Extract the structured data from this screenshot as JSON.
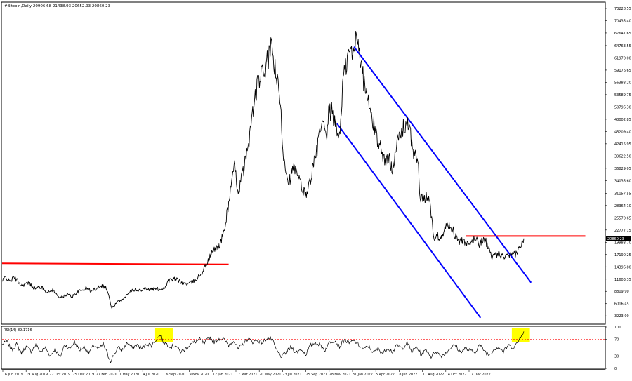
{
  "header": {
    "title_line": "#Bitcoin,Daily  20906.68 21438.93 20652.93 20860.23",
    "rsi_label": "RSI(14) 89.1716"
  },
  "colors": {
    "background": "#ffffff",
    "price": "#000000",
    "channel": "#0000ff",
    "resistance": "#ff0000",
    "rsi_level": "#ff0000",
    "rsi_highlight": "#ffff00",
    "current_price_tag": "#000000"
  },
  "chart_data": [
    {
      "type": "line",
      "title": "#Bitcoin,Daily",
      "xlabel": "",
      "ylabel": "",
      "ylim": [
        1500,
        74500
      ],
      "y_ticks": [
        73228.55,
        70435.4,
        67641.65,
        64763.55,
        61970.0,
        59176.65,
        56383.2,
        53589.75,
        50796.3,
        48002.85,
        45209.4,
        42415.95,
        39622.5,
        36829.05,
        34035.6,
        31157.55,
        28364.1,
        25570.65,
        22777.15,
        19983.7,
        17190.25,
        14396.8,
        11603.35,
        8809.9,
        6016.45,
        3223.0
      ],
      "x_ticks": [
        "16 Jun 2019",
        "19 Aug 2019",
        "22 Oct 2019",
        "25 Dec 2019",
        "27 Feb 2020",
        "1 May 2020",
        "4 Jul 2020",
        "6 Sep 2020",
        "9 Nov 2020",
        "12 Jan 2021",
        "17 Mar 2021",
        "20 May 2021",
        "23 Jul 2021",
        "25 Sep 2021",
        "28 Nov 2021",
        "31 Jan 2022",
        "5 Apr 2022",
        "8 Jun 2022",
        "11 Aug 2022",
        "14 Oct 2022",
        "17 Dec 2022"
      ],
      "last_price": "20860.23",
      "series": [
        {
          "values": [
            [
              0,
              11000
            ],
            [
              3,
              12200
            ],
            [
              6,
              11000
            ],
            [
              10,
              12000
            ],
            [
              16,
              10200
            ],
            [
              22,
              10700
            ],
            [
              27,
              9500
            ],
            [
              32,
              9800
            ],
            [
              38,
              8600
            ],
            [
              42,
              9200
            ],
            [
              46,
              7800
            ],
            [
              50,
              7400
            ],
            [
              54,
              8200
            ],
            [
              58,
              7600
            ],
            [
              62,
              8600
            ],
            [
              66,
              9000
            ],
            [
              70,
              9600
            ],
            [
              74,
              8800
            ],
            [
              78,
              9500
            ],
            [
              82,
              10200
            ],
            [
              86,
              9700
            ],
            [
              88,
              8400
            ],
            [
              90,
              6000
            ],
            [
              91,
              4900
            ],
            [
              93,
              5600
            ],
            [
              97,
              6700
            ],
            [
              101,
              7000
            ],
            [
              105,
              8700
            ],
            [
              109,
              9300
            ],
            [
              113,
              8900
            ],
            [
              118,
              9600
            ],
            [
              122,
              9200
            ],
            [
              127,
              9400
            ],
            [
              131,
              9300
            ],
            [
              135,
              9700
            ],
            [
              138,
              11200
            ],
            [
              142,
              11600
            ],
            [
              146,
              11400
            ],
            [
              150,
              10700
            ],
            [
              154,
              10500
            ],
            [
              158,
              10900
            ],
            [
              162,
              11800
            ],
            [
              166,
              13200
            ],
            [
              170,
              15200
            ],
            [
              174,
              17500
            ],
            [
              178,
              18800
            ],
            [
              181,
              19500
            ],
            [
              185,
              23500
            ],
            [
              188,
              29000
            ],
            [
              190,
              33000
            ],
            [
              193,
              37000
            ],
            [
              196,
              31500
            ],
            [
              200,
              36000
            ],
            [
              203,
              40000
            ],
            [
              207,
              47500
            ],
            [
              210,
              53000
            ],
            [
              213,
              57000
            ],
            [
              216,
              58000
            ],
            [
              219,
              60000
            ],
            [
              222,
              63000
            ],
            [
              224,
              64500
            ],
            [
              226,
              60000
            ],
            [
              228,
              57000
            ],
            [
              231,
              51000
            ],
            [
              233,
              41000
            ],
            [
              236,
              36000
            ],
            [
              238,
              34000
            ],
            [
              242,
              37000
            ],
            [
              245,
              35000
            ],
            [
              248,
              33000
            ],
            [
              251,
              31000
            ],
            [
              254,
              32000
            ],
            [
              257,
              36000
            ],
            [
              260,
              39000
            ],
            [
              263,
              44000
            ],
            [
              266,
              47000
            ],
            [
              269,
              43000
            ],
            [
              271,
              49000
            ],
            [
              274,
              50000
            ],
            [
              277,
              46000
            ],
            [
              280,
              44000
            ],
            [
              283,
              57000
            ],
            [
              286,
              61000
            ],
            [
              289,
              64000
            ],
            [
              291,
              62000
            ],
            [
              294,
              67500
            ],
            [
              296,
              66000
            ],
            [
              298,
              60000
            ],
            [
              300,
              57000
            ],
            [
              303,
              53000
            ],
            [
              306,
              49000
            ],
            [
              309,
              46000
            ],
            [
              312,
              43000
            ],
            [
              315,
              41000
            ],
            [
              318,
              38000
            ],
            [
              321,
              39000
            ],
            [
              324,
              37000
            ],
            [
              327,
              42000
            ],
            [
              330,
              44000
            ],
            [
              333,
              46000
            ],
            [
              336,
              47500
            ],
            [
              339,
              44000
            ],
            [
              342,
              40000
            ],
            [
              345,
              38500
            ],
            [
              347,
              30000
            ],
            [
              350,
              29500
            ],
            [
              353,
              30500
            ],
            [
              355,
              29000
            ],
            [
              357,
              24000
            ],
            [
              359,
              20500
            ],
            [
              361,
              21500
            ],
            [
              364,
              21000
            ],
            [
              367,
              23000
            ],
            [
              370,
              24000
            ],
            [
              373,
              23500
            ],
            [
              376,
              21500
            ],
            [
              379,
              20000
            ],
            [
              382,
              20500
            ],
            [
              385,
              19300
            ],
            [
              388,
              19500
            ],
            [
              390,
              20000
            ],
            [
              392,
              21000
            ],
            [
              394,
              20500
            ],
            [
              396,
              19700
            ],
            [
              398,
              20200
            ],
            [
              400,
              21000
            ],
            [
              403,
              19200
            ],
            [
              406,
              16700
            ],
            [
              409,
              16900
            ],
            [
              412,
              17200
            ],
            [
              415,
              16900
            ],
            [
              418,
              16600
            ],
            [
              421,
              17000
            ],
            [
              423,
              16900
            ],
            [
              426,
              17300
            ],
            [
              429,
              18500
            ],
            [
              432,
              20000
            ],
            [
              433,
              20860
            ]
          ]
        }
      ],
      "overlays": {
        "resistance_left": {
          "from_x": 0,
          "to_x": 188,
          "y_start": 15200,
          "y_end": 14950
        },
        "resistance_right": {
          "from_x": 385,
          "to_x": 484,
          "y": 21400
        },
        "channel_upper": {
          "from": [
            292,
            64500
          ],
          "to": [
            439,
            10800
          ]
        },
        "channel_lower": {
          "from": [
            278,
            47000
          ],
          "to": [
            397,
            2800
          ]
        }
      }
    },
    {
      "type": "line",
      "title": "RSI(14) 89.1716",
      "xlabel": "",
      "ylabel": "",
      "ylim": [
        0,
        100
      ],
      "y_ticks": [
        100,
        70,
        30,
        0
      ],
      "levels": [
        70,
        30
      ],
      "highlights": [
        {
          "from_x": 127,
          "to_x": 142
        },
        {
          "from_x": 423,
          "to_x": 438
        }
      ],
      "series": [
        {
          "values": [
            [
              0,
              58
            ],
            [
              4,
              64
            ],
            [
              8,
              45
            ],
            [
              12,
              58
            ],
            [
              16,
              38
            ],
            [
              20,
              52
            ],
            [
              24,
              42
            ],
            [
              28,
              56
            ],
            [
              32,
              40
            ],
            [
              36,
              50
            ],
            [
              40,
              30
            ],
            [
              44,
              48
            ],
            [
              48,
              26
            ],
            [
              52,
              58
            ],
            [
              56,
              47
            ],
            [
              60,
              64
            ],
            [
              64,
              44
            ],
            [
              68,
              52
            ],
            [
              72,
              38
            ],
            [
              76,
              56
            ],
            [
              80,
              46
            ],
            [
              84,
              59
            ],
            [
              88,
              30
            ],
            [
              90,
              18
            ],
            [
              92,
              28
            ],
            [
              96,
              50
            ],
            [
              100,
              45
            ],
            [
              104,
              62
            ],
            [
              108,
              50
            ],
            [
              112,
              57
            ],
            [
              116,
              48
            ],
            [
              120,
              60
            ],
            [
              124,
              56
            ],
            [
              128,
              70
            ],
            [
              131,
              82
            ],
            [
              133,
              66
            ],
            [
              136,
              60
            ],
            [
              140,
              52
            ],
            [
              144,
              56
            ],
            [
              148,
              40
            ],
            [
              152,
              46
            ],
            [
              156,
              58
            ],
            [
              160,
              64
            ],
            [
              164,
              70
            ],
            [
              168,
              60
            ],
            [
              172,
              75
            ],
            [
              176,
              64
            ],
            [
              180,
              72
            ],
            [
              184,
              70
            ],
            [
              188,
              56
            ],
            [
              192,
              68
            ],
            [
              196,
              46
            ],
            [
              200,
              60
            ],
            [
              204,
              72
            ],
            [
              208,
              64
            ],
            [
              212,
              68
            ],
            [
              216,
              62
            ],
            [
              220,
              74
            ],
            [
              224,
              70
            ],
            [
              228,
              42
            ],
            [
              232,
              28
            ],
            [
              236,
              40
            ],
            [
              240,
              52
            ],
            [
              244,
              38
            ],
            [
              248,
              46
            ],
            [
              252,
              34
            ],
            [
              256,
              56
            ],
            [
              260,
              62
            ],
            [
              264,
              56
            ],
            [
              268,
              44
            ],
            [
              272,
              64
            ],
            [
              276,
              68
            ],
            [
              280,
              52
            ],
            [
              284,
              70
            ],
            [
              288,
              60
            ],
            [
              292,
              68
            ],
            [
              296,
              56
            ],
            [
              300,
              46
            ],
            [
              304,
              54
            ],
            [
              308,
              38
            ],
            [
              312,
              48
            ],
            [
              316,
              36
            ],
            [
              320,
              50
            ],
            [
              324,
              40
            ],
            [
              328,
              56
            ],
            [
              332,
              48
            ],
            [
              336,
              62
            ],
            [
              340,
              40
            ],
            [
              344,
              52
            ],
            [
              348,
              32
            ],
            [
              352,
              46
            ],
            [
              356,
              28
            ],
            [
              360,
              42
            ],
            [
              364,
              30
            ],
            [
              368,
              36
            ],
            [
              372,
              50
            ],
            [
              376,
              56
            ],
            [
              380,
              40
            ],
            [
              384,
              48
            ],
            [
              388,
              44
            ],
            [
              392,
              38
            ],
            [
              396,
              56
            ],
            [
              400,
              44
            ],
            [
              404,
              32
            ],
            [
              408,
              46
            ],
            [
              412,
              52
            ],
            [
              416,
              40
            ],
            [
              420,
              56
            ],
            [
              424,
              50
            ],
            [
              428,
              62
            ],
            [
              431,
              82
            ],
            [
              433,
              89.17
            ]
          ]
        }
      ]
    }
  ]
}
